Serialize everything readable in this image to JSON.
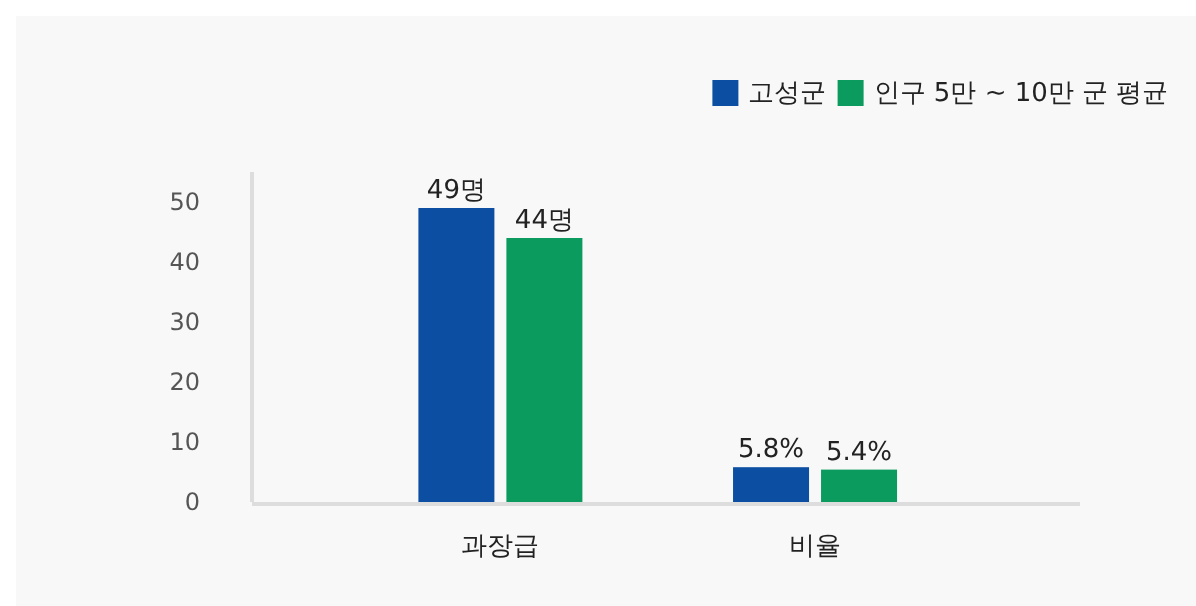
{
  "chart_data": {
    "type": "bar",
    "categories": [
      "과장급",
      "비율"
    ],
    "series": [
      {
        "name": "고성군",
        "color": "#0b4ea2",
        "values": [
          49,
          5.8
        ],
        "value_labels": [
          "49명",
          "5.8%"
        ]
      },
      {
        "name": "인구 5만 ~ 10만 군 평균",
        "color": "#0c9b5e",
        "values": [
          44,
          5.4
        ],
        "value_labels": [
          "44명",
          "5.4%"
        ]
      }
    ],
    "ylim": [
      0,
      55
    ],
    "yticks": [
      0,
      10,
      20,
      30,
      40,
      50
    ],
    "grid": false,
    "legend": "top right"
  }
}
